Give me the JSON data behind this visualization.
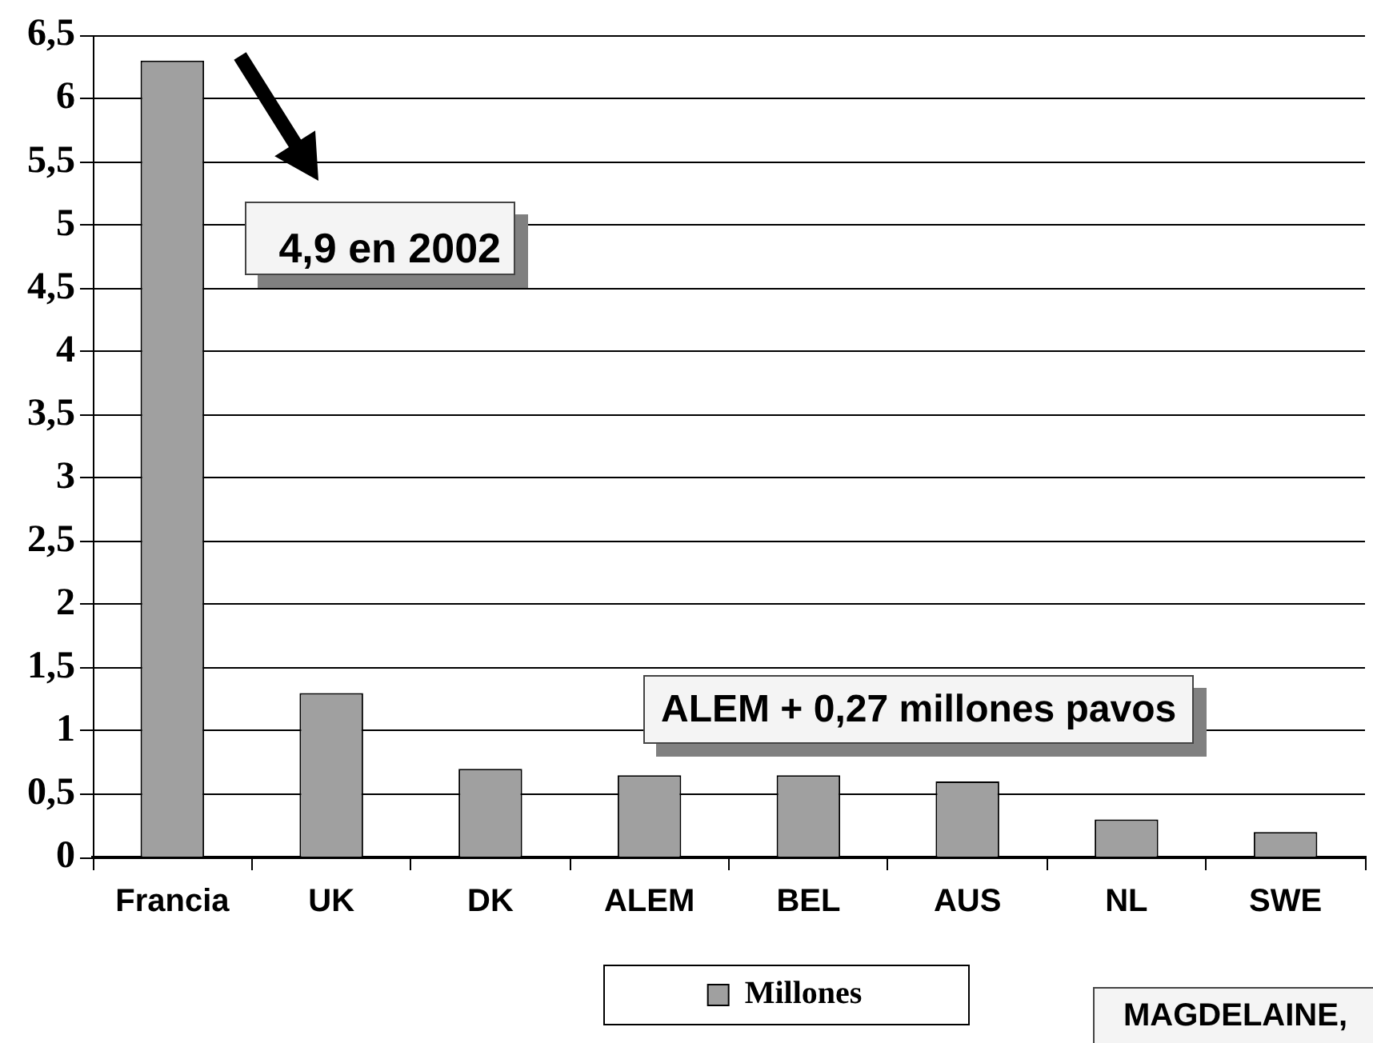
{
  "chart_data": {
    "type": "bar",
    "categories": [
      "Francia",
      "UK",
      "DK",
      "ALEM",
      "BEL",
      "AUS",
      "NL",
      "SWE"
    ],
    "series": [
      {
        "name": "Millones",
        "color": "#a0a0a0",
        "values": [
          6.3,
          1.3,
          0.7,
          0.65,
          0.65,
          0.6,
          0.3,
          0.2
        ]
      }
    ],
    "ylim": [
      0,
      6.5
    ],
    "yticks": [
      0,
      {
        "value": 0.5,
        "label": "0,5"
      },
      1,
      {
        "value": 1.5,
        "label": "1,5"
      },
      2,
      {
        "value": 2.5,
        "label": "2,5"
      },
      3,
      {
        "value": 3.5,
        "label": "3,5"
      },
      4,
      {
        "value": 4.5,
        "label": "4,5"
      },
      5,
      {
        "value": 5.5,
        "label": "5,5"
      },
      6,
      {
        "value": 6.5,
        "label": "6,5"
      }
    ],
    "grid": "y",
    "legend": "bottom",
    "annotations": [
      "4,9 en 2002",
      "ALEM + 0,27 millones pavos",
      "MAGDELAINE,"
    ]
  }
}
